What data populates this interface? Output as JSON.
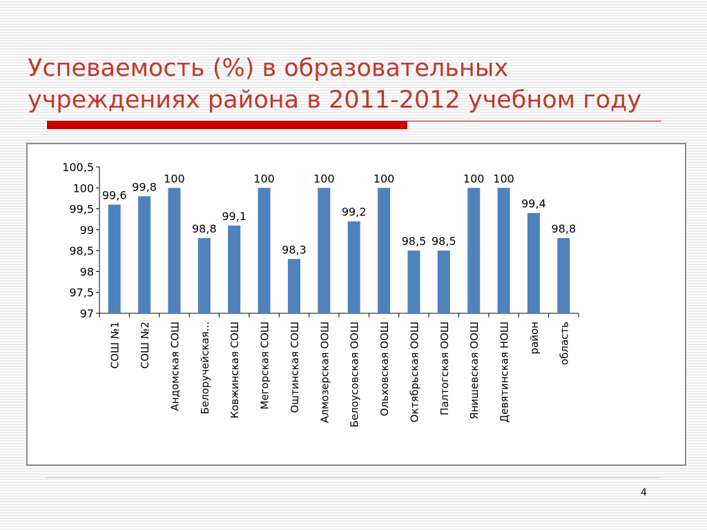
{
  "slide": {
    "title_line1": "Успеваемость (%) в образовательных",
    "title_line2": "учреждениях района в 2011-2012 учебном году",
    "page_number": "4",
    "title_color": "#c0392b",
    "accent_color": "#cc0000"
  },
  "chart_data": {
    "type": "bar",
    "title": "",
    "xlabel": "",
    "ylabel": "",
    "categories": [
      "СОШ №1",
      "СОШ №2",
      "Андомская СОШ",
      "Белоручейская...",
      "Ковжинская СОШ",
      "Мегорская СОШ",
      "Оштинская СОШ",
      "Алмозерская ООШ",
      "Белоусовская ООШ",
      "Ольховская ООШ",
      "Октябрьская ООШ",
      "Палтогская ООШ",
      "Янишевская ООШ",
      "Девятинская НОШ",
      "район",
      "область"
    ],
    "values": [
      99.6,
      99.8,
      100,
      98.8,
      99.1,
      100,
      98.3,
      100,
      99.2,
      100,
      98.5,
      98.5,
      100,
      100,
      99.4,
      98.8
    ],
    "value_labels": [
      "99,6",
      "99,8",
      "100",
      "98,8",
      "99,1",
      "100",
      "98,3",
      "100",
      "99,2",
      "100",
      "98,5",
      "98,5",
      "100",
      "100",
      "99,4",
      "98,8"
    ],
    "y_ticks": [
      97,
      97.5,
      98,
      98.5,
      99,
      99.5,
      100,
      100.5
    ],
    "y_tick_labels": [
      "97",
      "97,5",
      "98",
      "98,5",
      "99",
      "99,5",
      "100",
      "100,5"
    ],
    "ylim": [
      97,
      100.5
    ],
    "grid": false,
    "legend": "none",
    "bar_color": "#4f81bd"
  }
}
